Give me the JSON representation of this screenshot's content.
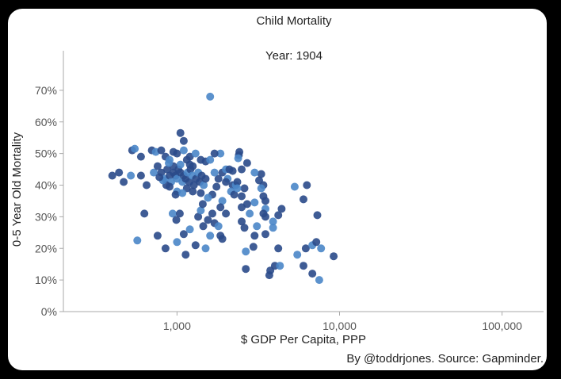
{
  "chart_data": {
    "type": "scatter",
    "title": "Child Mortality",
    "subtitle": "Year: 1904",
    "xlabel": "$ GDP Per Capita, PPP",
    "ylabel": "0-5 Year Old Mortality",
    "x_scale": "log",
    "xlim": [
      200,
      180000
    ],
    "ylim": [
      0,
      0.8
    ],
    "x_ticks": [
      {
        "value": 1000,
        "label": "1,000"
      },
      {
        "value": 10000,
        "label": "10,000"
      },
      {
        "value": 100000,
        "label": "100,000"
      }
    ],
    "y_ticks": [
      {
        "value": 0,
        "label": "0%"
      },
      {
        "value": 0.1,
        "label": "10%"
      },
      {
        "value": 0.2,
        "label": "20%"
      },
      {
        "value": 0.3,
        "label": "30%"
      },
      {
        "value": 0.4,
        "label": "40%"
      },
      {
        "value": 0.5,
        "label": "50%"
      },
      {
        "value": 0.6,
        "label": "60%"
      },
      {
        "value": 0.7,
        "label": "70%"
      }
    ],
    "grid": false,
    "point_colors": [
      "#2a4a8a",
      "#4a86c8"
    ],
    "points": [
      [
        1600,
        0.68
      ],
      [
        1050,
        0.565
      ],
      [
        1100,
        0.54
      ],
      [
        1850,
        0.5
      ],
      [
        2420,
        0.505
      ],
      [
        2400,
        0.495
      ],
      [
        2380,
        0.485
      ],
      [
        2700,
        0.47
      ],
      [
        3300,
        0.435
      ],
      [
        3000,
        0.44
      ],
      [
        2500,
        0.45
      ],
      [
        2200,
        0.445
      ],
      [
        2050,
        0.42
      ],
      [
        3200,
        0.415
      ],
      [
        3400,
        0.4
      ],
      [
        3300,
        0.39
      ],
      [
        3400,
        0.365
      ],
      [
        3500,
        0.35
      ],
      [
        3500,
        0.325
      ],
      [
        3400,
        0.31
      ],
      [
        3500,
        0.3
      ],
      [
        3000,
        0.345
      ],
      [
        2700,
        0.34
      ],
      [
        2500,
        0.33
      ],
      [
        2800,
        0.31
      ],
      [
        2500,
        0.285
      ],
      [
        2600,
        0.265
      ],
      [
        3100,
        0.27
      ],
      [
        3000,
        0.24
      ],
      [
        2950,
        0.205
      ],
      [
        2650,
        0.19
      ],
      [
        2650,
        0.135
      ],
      [
        3500,
        0.245
      ],
      [
        3900,
        0.285
      ],
      [
        4200,
        0.305
      ],
      [
        4400,
        0.325
      ],
      [
        3900,
        0.265
      ],
      [
        4000,
        0.145
      ],
      [
        4200,
        0.2
      ],
      [
        4300,
        0.145
      ],
      [
        3750,
        0.13
      ],
      [
        3700,
        0.115
      ],
      [
        5300,
        0.395
      ],
      [
        6300,
        0.4
      ],
      [
        6000,
        0.355
      ],
      [
        5500,
        0.18
      ],
      [
        6000,
        0.145
      ],
      [
        6200,
        0.2
      ],
      [
        6800,
        0.21
      ],
      [
        7200,
        0.22
      ],
      [
        7300,
        0.305
      ],
      [
        7700,
        0.2
      ],
      [
        9200,
        0.175
      ],
      [
        6800,
        0.12
      ],
      [
        7500,
        0.1
      ],
      [
        440,
        0.44
      ],
      [
        400,
        0.43
      ],
      [
        520,
        0.43
      ],
      [
        470,
        0.41
      ],
      [
        530,
        0.51
      ],
      [
        550,
        0.515
      ],
      [
        600,
        0.49
      ],
      [
        700,
        0.51
      ],
      [
        740,
        0.505
      ],
      [
        800,
        0.51
      ],
      [
        850,
        0.49
      ],
      [
        900,
        0.48
      ],
      [
        950,
        0.505
      ],
      [
        1000,
        0.5
      ],
      [
        1100,
        0.51
      ],
      [
        1200,
        0.49
      ],
      [
        1250,
        0.46
      ],
      [
        1300,
        0.5
      ],
      [
        1400,
        0.48
      ],
      [
        1500,
        0.475
      ],
      [
        1600,
        0.48
      ],
      [
        1700,
        0.5
      ],
      [
        1900,
        0.44
      ],
      [
        2000,
        0.45
      ],
      [
        2100,
        0.45
      ],
      [
        1800,
        0.42
      ],
      [
        1700,
        0.44
      ],
      [
        1750,
        0.395
      ],
      [
        1650,
        0.37
      ],
      [
        1550,
        0.36
      ],
      [
        2000,
        0.41
      ],
      [
        2200,
        0.4
      ],
      [
        1900,
        0.35
      ],
      [
        1850,
        0.33
      ],
      [
        2000,
        0.31
      ],
      [
        2300,
        0.4
      ],
      [
        2350,
        0.41
      ],
      [
        2600,
        0.39
      ],
      [
        2150,
        0.38
      ],
      [
        2250,
        0.37
      ],
      [
        2500,
        0.365
      ],
      [
        2350,
        0.39
      ],
      [
        600,
        0.43
      ],
      [
        650,
        0.4
      ],
      [
        720,
        0.44
      ],
      [
        760,
        0.46
      ],
      [
        800,
        0.44
      ],
      [
        840,
        0.42
      ],
      [
        870,
        0.45
      ],
      [
        900,
        0.43
      ],
      [
        920,
        0.41
      ],
      [
        950,
        0.44
      ],
      [
        980,
        0.43
      ],
      [
        1000,
        0.42
      ],
      [
        1020,
        0.45
      ],
      [
        1050,
        0.44
      ],
      [
        1080,
        0.41
      ],
      [
        1100,
        0.43
      ],
      [
        1130,
        0.42
      ],
      [
        1160,
        0.44
      ],
      [
        1190,
        0.41
      ],
      [
        1210,
        0.45
      ],
      [
        1240,
        0.43
      ],
      [
        1270,
        0.4
      ],
      [
        1310,
        0.42
      ],
      [
        1350,
        0.44
      ],
      [
        1380,
        0.41
      ],
      [
        1420,
        0.43
      ],
      [
        1460,
        0.4
      ],
      [
        1500,
        0.42
      ],
      [
        1150,
        0.39
      ],
      [
        1000,
        0.38
      ],
      [
        900,
        0.395
      ],
      [
        860,
        0.4
      ],
      [
        820,
        0.415
      ],
      [
        780,
        0.425
      ],
      [
        980,
        0.37
      ],
      [
        1080,
        0.375
      ],
      [
        1250,
        0.38
      ],
      [
        1400,
        0.375
      ],
      [
        1050,
        0.465
      ],
      [
        1150,
        0.48
      ],
      [
        950,
        0.46
      ],
      [
        890,
        0.47
      ],
      [
        1200,
        0.465
      ],
      [
        630,
        0.31
      ],
      [
        570,
        0.225
      ],
      [
        760,
        0.24
      ],
      [
        850,
        0.2
      ],
      [
        940,
        0.31
      ],
      [
        990,
        0.29
      ],
      [
        1040,
        0.31
      ],
      [
        1000,
        0.22
      ],
      [
        1100,
        0.245
      ],
      [
        1130,
        0.18
      ],
      [
        1200,
        0.26
      ],
      [
        1300,
        0.21
      ],
      [
        1350,
        0.3
      ],
      [
        1400,
        0.32
      ],
      [
        1450,
        0.27
      ],
      [
        1550,
        0.29
      ],
      [
        1600,
        0.24
      ],
      [
        1650,
        0.31
      ],
      [
        1700,
        0.28
      ],
      [
        1800,
        0.27
      ],
      [
        1850,
        0.24
      ],
      [
        1900,
        0.23
      ],
      [
        1500,
        0.2
      ],
      [
        1440,
        0.34
      ]
    ]
  },
  "source_text": "By @toddrjones. Source: Gapminder."
}
